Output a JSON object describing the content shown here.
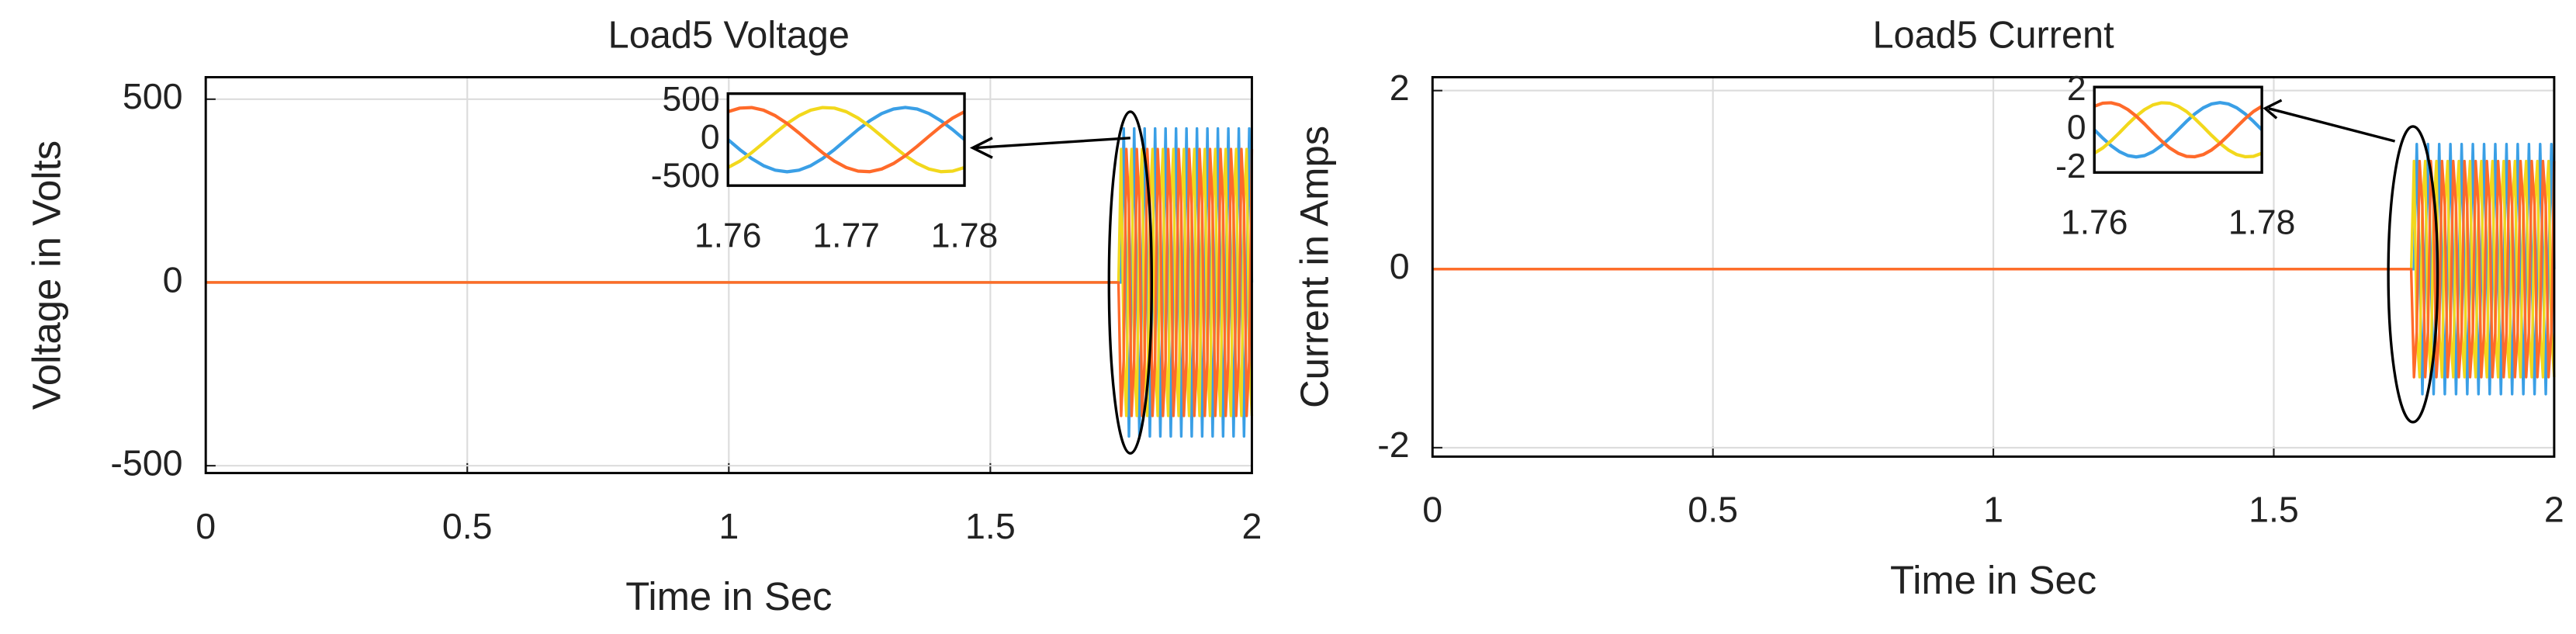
{
  "chart_data": [
    {
      "type": "line",
      "title": "Load5 Voltage",
      "xlabel": "Time in Sec",
      "ylabel": "Voltage in Volts",
      "xlim": [
        0,
        2
      ],
      "ylim": [
        -520,
        560
      ],
      "xticks": [
        0,
        0.5,
        1,
        1.5,
        2
      ],
      "yticks": [
        -500,
        0,
        500
      ],
      "grid": true,
      "x": [
        0,
        1.745,
        1.75,
        1.755,
        1.76,
        1.765,
        1.77,
        1.775,
        1.78,
        1.785,
        1.79,
        1.795,
        1.8,
        1.805,
        1.81,
        1.815,
        1.82,
        1.825,
        1.83,
        1.835,
        1.84,
        1.845,
        1.85,
        1.855,
        1.86,
        1.865,
        1.87,
        1.875,
        1.88,
        1.885,
        1.89,
        1.895,
        1.9,
        1.905,
        1.91,
        1.915,
        1.92,
        1.925,
        1.93,
        1.935,
        1.94,
        1.945,
        1.95,
        1.955,
        1.96,
        1.965,
        1.97,
        1.975,
        1.98,
        1.985,
        1.99,
        1.995,
        2
      ],
      "series": [
        {
          "color": "#3a9fe6",
          "values": [
            0,
            0,
            0,
            420,
            0,
            -420,
            0,
            420,
            0,
            -420,
            0,
            420,
            0,
            -420,
            0,
            420,
            0,
            -420,
            0,
            420,
            0,
            -420,
            0,
            420,
            0,
            -420,
            0,
            420,
            0,
            -420,
            0,
            420,
            0,
            -420,
            0,
            420,
            0,
            -420,
            0,
            420,
            0,
            -420,
            0,
            420,
            0,
            -420,
            0,
            420,
            0,
            -420,
            0,
            420,
            0
          ]
        },
        {
          "color": "#f2d81c",
          "values": [
            0,
            0,
            364,
            -210,
            -364,
            210,
            364,
            -210,
            -364,
            210,
            364,
            -210,
            -364,
            210,
            364,
            -210,
            -364,
            210,
            364,
            -210,
            -364,
            210,
            364,
            -210,
            -364,
            210,
            364,
            -210,
            -364,
            210,
            364,
            -210,
            -364,
            210,
            364,
            -210,
            -364,
            210,
            364,
            -210,
            -364,
            210,
            364,
            -210,
            -364,
            210,
            364,
            -210,
            -364,
            210,
            364,
            -210,
            -364
          ]
        },
        {
          "color": "#ff6a2a",
          "values": [
            0,
            0,
            -364,
            -210,
            364,
            210,
            -364,
            -210,
            364,
            210,
            -364,
            -210,
            364,
            210,
            -364,
            -210,
            364,
            210,
            -364,
            -210,
            364,
            210,
            -364,
            -210,
            364,
            210,
            -364,
            -210,
            364,
            210,
            -364,
            -210,
            364,
            210,
            -364,
            -210,
            364,
            210,
            -364,
            -210,
            364,
            210,
            -364,
            -210,
            364,
            210,
            -364,
            -210,
            364,
            210,
            -364,
            -210,
            364
          ]
        }
      ],
      "inset": {
        "xlim": [
          1.76,
          1.78
        ],
        "ylim": [
          -600,
          600
        ],
        "xticks": [
          1.76,
          1.77,
          1.78
        ],
        "yticks": [
          -500,
          0,
          500
        ],
        "x": [
          1.76,
          1.761,
          1.762,
          1.763,
          1.764,
          1.765,
          1.766,
          1.767,
          1.768,
          1.769,
          1.77,
          1.771,
          1.772,
          1.773,
          1.774,
          1.775,
          1.776,
          1.777,
          1.778,
          1.779,
          1.78
        ],
        "series": [
          {
            "color": "#3a9fe6",
            "values": [
              0,
              -130,
              -247,
              -340,
              -399,
              -420,
              -399,
              -340,
              -247,
              -130,
              0,
              130,
              247,
              340,
              399,
              420,
              399,
              340,
              247,
              130,
              0
            ]
          },
          {
            "color": "#f2d81c",
            "values": [
              -364,
              -281,
              -171,
              -44,
              87,
              210,
              312,
              384,
              418,
              411,
              364,
              281,
              171,
              44,
              -87,
              -210,
              -312,
              -384,
              -418,
              -411,
              -364
            ]
          },
          {
            "color": "#ff6a2a",
            "values": [
              364,
              411,
              418,
              384,
              312,
              210,
              87,
              -44,
              -171,
              -281,
              -364,
              -411,
              -418,
              -384,
              -312,
              -210,
              -87,
              44,
              171,
              281,
              364
            ]
          }
        ]
      }
    },
    {
      "type": "line",
      "title": "Load5 Current",
      "xlabel": "Time in Sec",
      "ylabel": "Current in Amps",
      "xlim": [
        0,
        2
      ],
      "ylim": [
        -2.1,
        2.15
      ],
      "xticks": [
        0,
        0.5,
        1,
        1.5,
        2
      ],
      "yticks": [
        -2,
        0,
        2
      ],
      "grid": true,
      "x": [
        0,
        1.745,
        1.75,
        1.755,
        1.76,
        1.765,
        1.77,
        1.775,
        1.78,
        1.785,
        1.79,
        1.795,
        1.8,
        1.805,
        1.81,
        1.815,
        1.82,
        1.825,
        1.83,
        1.835,
        1.84,
        1.845,
        1.85,
        1.855,
        1.86,
        1.865,
        1.87,
        1.875,
        1.88,
        1.885,
        1.89,
        1.895,
        1.9,
        1.905,
        1.91,
        1.915,
        1.92,
        1.925,
        1.93,
        1.935,
        1.94,
        1.945,
        1.95,
        1.955,
        1.96,
        1.965,
        1.97,
        1.975,
        1.98,
        1.985,
        1.99,
        1.995,
        2
      ],
      "series": [
        {
          "color": "#3a9fe6",
          "values": [
            0,
            0,
            0,
            1.4,
            0,
            -1.4,
            0,
            1.4,
            0,
            -1.4,
            0,
            1.4,
            0,
            -1.4,
            0,
            1.4,
            0,
            -1.4,
            0,
            1.4,
            0,
            -1.4,
            0,
            1.4,
            0,
            -1.4,
            0,
            1.4,
            0,
            -1.4,
            0,
            1.4,
            0,
            -1.4,
            0,
            1.4,
            0,
            -1.4,
            0,
            1.4,
            0,
            -1.4,
            0,
            1.4,
            0,
            -1.4,
            0,
            1.4,
            0,
            -1.4,
            0,
            1.4,
            0
          ]
        },
        {
          "color": "#f2d81c",
          "values": [
            0,
            0,
            1.21,
            -0.7,
            -1.21,
            0.7,
            1.21,
            -0.7,
            -1.21,
            0.7,
            1.21,
            -0.7,
            -1.21,
            0.7,
            1.21,
            -0.7,
            -1.21,
            0.7,
            1.21,
            -0.7,
            -1.21,
            0.7,
            1.21,
            -0.7,
            -1.21,
            0.7,
            1.21,
            -0.7,
            -1.21,
            0.7,
            1.21,
            -0.7,
            -1.21,
            0.7,
            1.21,
            -0.7,
            -1.21,
            0.7,
            1.21,
            -0.7,
            -1.21,
            0.7,
            1.21,
            -0.7,
            -1.21,
            0.7,
            1.21,
            -0.7,
            -1.21,
            0.7,
            1.21,
            -0.7,
            -1.21
          ]
        },
        {
          "color": "#ff6a2a",
          "values": [
            0,
            0,
            -1.21,
            -0.7,
            1.21,
            0.7,
            -1.21,
            -0.7,
            1.21,
            0.7,
            -1.21,
            -0.7,
            1.21,
            0.7,
            -1.21,
            -0.7,
            1.21,
            0.7,
            -1.21,
            -0.7,
            1.21,
            0.7,
            -1.21,
            -0.7,
            1.21,
            0.7,
            -1.21,
            -0.7,
            1.21,
            0.7,
            -1.21,
            -0.7,
            1.21,
            0.7,
            -1.21,
            -0.7,
            1.21,
            0.7,
            -1.21,
            -0.7,
            1.21,
            0.7,
            -1.21,
            -0.7,
            1.21,
            0.7,
            -1.21,
            -0.7,
            1.21,
            0.7,
            -1.21,
            -0.7,
            1.21
          ]
        }
      ],
      "inset": {
        "xlim": [
          1.76,
          1.78
        ],
        "ylim": [
          -2.2,
          2.2
        ],
        "xticks": [
          1.76,
          1.78
        ],
        "yticks": [
          -2,
          0,
          2
        ],
        "x": [
          1.76,
          1.761,
          1.762,
          1.763,
          1.764,
          1.765,
          1.766,
          1.767,
          1.768,
          1.769,
          1.77,
          1.771,
          1.772,
          1.773,
          1.774,
          1.775,
          1.776,
          1.777,
          1.778,
          1.779,
          1.78
        ],
        "series": [
          {
            "color": "#3a9fe6",
            "values": [
              0,
              -0.43,
              -0.82,
              -1.13,
              -1.33,
              -1.4,
              -1.33,
              -1.13,
              -0.82,
              -0.43,
              0,
              0.43,
              0.82,
              1.13,
              1.33,
              1.4,
              1.33,
              1.13,
              0.82,
              0.43,
              0
            ]
          },
          {
            "color": "#f2d81c",
            "values": [
              -1.21,
              -0.94,
              -0.57,
              -0.15,
              0.29,
              0.7,
              1.04,
              1.28,
              1.39,
              1.37,
              1.21,
              0.94,
              0.57,
              0.15,
              -0.29,
              -0.7,
              -1.04,
              -1.28,
              -1.39,
              -1.37,
              -1.21
            ]
          },
          {
            "color": "#ff6a2a",
            "values": [
              1.21,
              1.37,
              1.39,
              1.28,
              1.04,
              0.7,
              0.29,
              -0.15,
              -0.57,
              -0.94,
              -1.21,
              -1.37,
              -1.39,
              -1.28,
              -1.04,
              -0.7,
              -0.29,
              0.15,
              0.57,
              0.94,
              1.21
            ]
          }
        ]
      }
    }
  ]
}
